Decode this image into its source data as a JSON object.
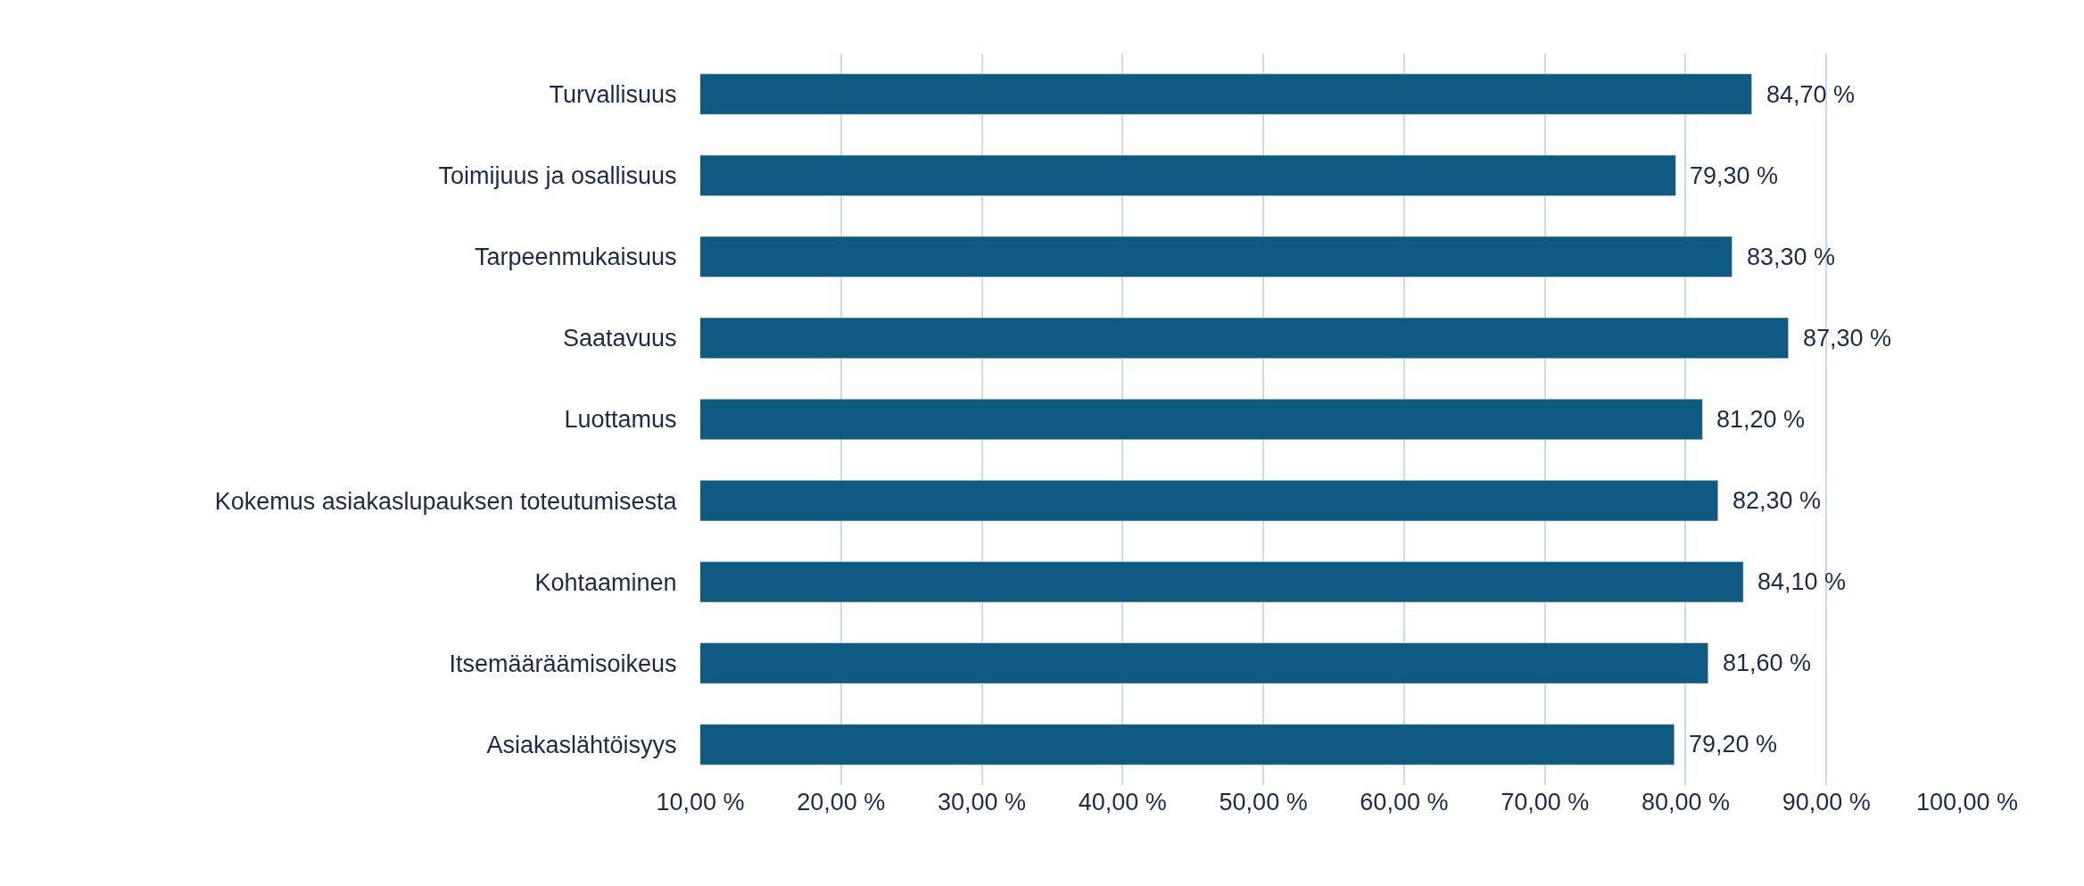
{
  "chart_data": {
    "type": "bar",
    "orientation": "horizontal",
    "categories": [
      "Turvallisuus",
      "Toimijuus ja osallisuus",
      "Tarpeenmukaisuus",
      "Saatavuus",
      "Luottamus",
      "Kokemus asiakaslupauksen toteutumisesta",
      "Kohtaaminen",
      "Itsemääräämisoikeus",
      "Asiakaslähtöisyys"
    ],
    "values": [
      84.7,
      79.3,
      83.3,
      87.3,
      81.2,
      82.3,
      84.1,
      81.6,
      79.2
    ],
    "value_labels": [
      "84,70 %",
      "79,30 %",
      "83,30 %",
      "87,30 %",
      "81,20 %",
      "82,30 %",
      "84,10 %",
      "81,60 %",
      "79,20 %"
    ],
    "color": "#0e5a80",
    "xlim": [
      10,
      100
    ],
    "xticks": [
      {
        "value": 10,
        "label": "10,00 %"
      },
      {
        "value": 20,
        "label": "20,00 %"
      },
      {
        "value": 30,
        "label": "30,00 %"
      },
      {
        "value": 40,
        "label": "40,00 %"
      },
      {
        "value": 50,
        "label": "50,00 %"
      },
      {
        "value": 60,
        "label": "60,00 %"
      },
      {
        "value": 70,
        "label": "70,00 %"
      },
      {
        "value": 80,
        "label": "80,00 %"
      },
      {
        "value": 90,
        "label": "90,00 %"
      },
      {
        "value": 100,
        "label": "100,00 %"
      }
    ],
    "grid": "x",
    "legend": false
  }
}
